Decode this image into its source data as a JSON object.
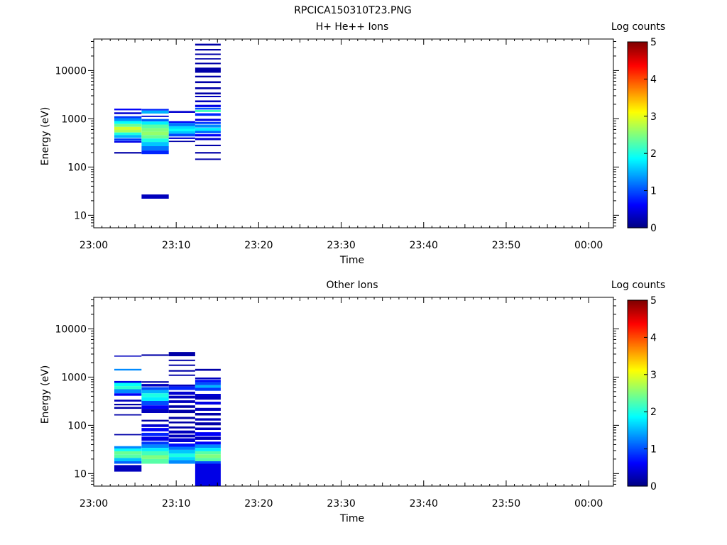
{
  "page_title": "RPCICA150310T23.PNG",
  "chart_data": [
    {
      "type": "heatmap",
      "title": "H+ He++ Ions",
      "xlabel": "Time",
      "ylabel": "Energy (eV)",
      "x_ticks": [
        "23:00",
        "23:10",
        "23:20",
        "23:30",
        "23:40",
        "23:50",
        "00:00"
      ],
      "xlim_minutes": [
        0,
        63
      ],
      "y_scale": "log",
      "ylim": [
        5.5,
        45000
      ],
      "y_ticks": [
        10,
        100,
        1000,
        10000
      ],
      "y_tick_labels": [
        "10",
        "100",
        "1000",
        "10000"
      ],
      "colorbar": {
        "label": "Log counts",
        "range": [
          0,
          5
        ],
        "ticks": [
          "0",
          "1",
          "2",
          "3",
          "4",
          "5"
        ]
      },
      "columns": [
        {
          "t0": 2.5,
          "t1": 5.8,
          "bands": [
            {
              "e0": 1500,
              "e1": 1620,
              "v": 0.6
            },
            {
              "e0": 1250,
              "e1": 1360,
              "v": 0.4
            },
            {
              "e0": 1030,
              "e1": 1130,
              "v": 0.9
            },
            {
              "e0": 900,
              "e1": 1030,
              "v": 1.3
            },
            {
              "e0": 780,
              "e1": 900,
              "v": 1.9
            },
            {
              "e0": 680,
              "e1": 780,
              "v": 2.4
            },
            {
              "e0": 590,
              "e1": 680,
              "v": 2.9
            },
            {
              "e0": 520,
              "e1": 590,
              "v": 2.7
            },
            {
              "e0": 460,
              "e1": 520,
              "v": 2.0
            },
            {
              "e0": 400,
              "e1": 460,
              "v": 1.5
            },
            {
              "e0": 350,
              "e1": 390,
              "v": 0.9
            },
            {
              "e0": 320,
              "e1": 345,
              "v": 0.5
            },
            {
              "e0": 190,
              "e1": 205,
              "v": 0.2
            }
          ]
        },
        {
          "t0": 5.8,
          "t1": 9.1,
          "bands": [
            {
              "e0": 1480,
              "e1": 1600,
              "v": 0.8
            },
            {
              "e0": 1280,
              "e1": 1480,
              "v": 1.5
            },
            {
              "e0": 1090,
              "e1": 1160,
              "v": 0.4
            },
            {
              "e0": 880,
              "e1": 990,
              "v": 1.1
            },
            {
              "e0": 760,
              "e1": 880,
              "v": 1.8
            },
            {
              "e0": 640,
              "e1": 760,
              "v": 2.3
            },
            {
              "e0": 540,
              "e1": 640,
              "v": 2.5
            },
            {
              "e0": 460,
              "e1": 540,
              "v": 2.6
            },
            {
              "e0": 390,
              "e1": 460,
              "v": 2.4
            },
            {
              "e0": 330,
              "e1": 390,
              "v": 2.0
            },
            {
              "e0": 270,
              "e1": 330,
              "v": 1.6
            },
            {
              "e0": 220,
              "e1": 270,
              "v": 1.2
            },
            {
              "e0": 185,
              "e1": 220,
              "v": 0.8
            },
            {
              "e0": 22,
              "e1": 27,
              "v": 0.3
            }
          ]
        },
        {
          "t0": 9.1,
          "t1": 12.3,
          "bands": [
            {
              "e0": 1330,
              "e1": 1450,
              "v": 0.4
            },
            {
              "e0": 820,
              "e1": 890,
              "v": 0.6
            },
            {
              "e0": 700,
              "e1": 820,
              "v": 1.2
            },
            {
              "e0": 620,
              "e1": 700,
              "v": 1.7
            },
            {
              "e0": 550,
              "e1": 620,
              "v": 1.9
            },
            {
              "e0": 490,
              "e1": 550,
              "v": 1.6
            },
            {
              "e0": 430,
              "e1": 490,
              "v": 1.0
            },
            {
              "e0": 380,
              "e1": 410,
              "v": 0.4
            },
            {
              "e0": 330,
              "e1": 350,
              "v": 0.2
            }
          ]
        },
        {
          "t0": 12.3,
          "t1": 15.4,
          "bands": [
            {
              "e0": 33000,
              "e1": 36000,
              "v": 0.2
            },
            {
              "e0": 26000,
              "e1": 28000,
              "v": 0.2
            },
            {
              "e0": 21000,
              "e1": 22500,
              "v": 0.2
            },
            {
              "e0": 17000,
              "e1": 18000,
              "v": 0.2
            },
            {
              "e0": 13500,
              "e1": 14500,
              "v": 0.2
            },
            {
              "e0": 9000,
              "e1": 11500,
              "v": 0.2
            },
            {
              "e0": 7200,
              "e1": 7800,
              "v": 0.2
            },
            {
              "e0": 5500,
              "e1": 6000,
              "v": 0.2
            },
            {
              "e0": 4100,
              "e1": 4500,
              "v": 0.2
            },
            {
              "e0": 3200,
              "e1": 3500,
              "v": 0.2
            },
            {
              "e0": 2800,
              "e1": 3000,
              "v": 0.3
            },
            {
              "e0": 2200,
              "e1": 2400,
              "v": 0.3
            },
            {
              "e0": 1750,
              "e1": 1950,
              "v": 0.5
            },
            {
              "e0": 1550,
              "e1": 1700,
              "v": 1.0
            },
            {
              "e0": 1380,
              "e1": 1520,
              "v": 2.2
            },
            {
              "e0": 1150,
              "e1": 1300,
              "v": 0.8
            },
            {
              "e0": 900,
              "e1": 1000,
              "v": 0.5
            },
            {
              "e0": 780,
              "e1": 860,
              "v": 0.9
            },
            {
              "e0": 660,
              "e1": 760,
              "v": 1.3
            },
            {
              "e0": 560,
              "e1": 650,
              "v": 1.8
            },
            {
              "e0": 500,
              "e1": 560,
              "v": 1.1
            },
            {
              "e0": 430,
              "e1": 480,
              "v": 0.6
            },
            {
              "e0": 360,
              "e1": 400,
              "v": 0.4
            },
            {
              "e0": 270,
              "e1": 290,
              "v": 0.2
            },
            {
              "e0": 190,
              "e1": 205,
              "v": 0.2
            },
            {
              "e0": 140,
              "e1": 150,
              "v": 0.2
            }
          ]
        }
      ]
    },
    {
      "type": "heatmap",
      "title": "Other Ions",
      "xlabel": "Time",
      "ylabel": "Energy (eV)",
      "x_ticks": [
        "23:00",
        "23:10",
        "23:20",
        "23:30",
        "23:40",
        "23:50",
        "00:00"
      ],
      "xlim_minutes": [
        0,
        63
      ],
      "y_scale": "log",
      "ylim": [
        5.5,
        45000
      ],
      "y_ticks": [
        10,
        100,
        1000,
        10000
      ],
      "y_tick_labels": [
        "10",
        "100",
        "1000",
        "10000"
      ],
      "colorbar": {
        "label": "Log counts",
        "range": [
          0,
          5
        ],
        "ticks": [
          "0",
          "1",
          "2",
          "3",
          "4",
          "5"
        ]
      },
      "columns": [
        {
          "t0": 2.5,
          "t1": 5.8,
          "bands": [
            {
              "e0": 2650,
              "e1": 2800,
              "v": 0.3
            },
            {
              "e0": 1370,
              "e1": 1480,
              "v": 1.3
            },
            {
              "e0": 760,
              "e1": 830,
              "v": 0.5
            },
            {
              "e0": 650,
              "e1": 760,
              "v": 1.9
            },
            {
              "e0": 560,
              "e1": 650,
              "v": 2.1
            },
            {
              "e0": 460,
              "e1": 560,
              "v": 1.3
            },
            {
              "e0": 410,
              "e1": 460,
              "v": 0.6
            },
            {
              "e0": 310,
              "e1": 340,
              "v": 0.3
            },
            {
              "e0": 260,
              "e1": 280,
              "v": 0.2
            },
            {
              "e0": 220,
              "e1": 240,
              "v": 0.2
            },
            {
              "e0": 160,
              "e1": 170,
              "v": 0.2
            },
            {
              "e0": 62,
              "e1": 66,
              "v": 0.2
            },
            {
              "e0": 33,
              "e1": 37,
              "v": 1.3
            },
            {
              "e0": 29,
              "e1": 33,
              "v": 1.9
            },
            {
              "e0": 25,
              "e1": 29,
              "v": 2.4
            },
            {
              "e0": 21,
              "e1": 25,
              "v": 2.3
            },
            {
              "e0": 18,
              "e1": 21,
              "v": 1.6
            },
            {
              "e0": 16,
              "e1": 18,
              "v": 1.1
            },
            {
              "e0": 11,
              "e1": 15,
              "v": 0.3
            }
          ]
        },
        {
          "t0": 5.8,
          "t1": 9.1,
          "bands": [
            {
              "e0": 2750,
              "e1": 2950,
              "v": 0.2
            },
            {
              "e0": 760,
              "e1": 820,
              "v": 0.2
            },
            {
              "e0": 640,
              "e1": 720,
              "v": 0.3
            },
            {
              "e0": 540,
              "e1": 620,
              "v": 1.0
            },
            {
              "e0": 460,
              "e1": 540,
              "v": 1.5
            },
            {
              "e0": 380,
              "e1": 460,
              "v": 2.0
            },
            {
              "e0": 320,
              "e1": 380,
              "v": 1.8
            },
            {
              "e0": 260,
              "e1": 320,
              "v": 1.0
            },
            {
              "e0": 220,
              "e1": 260,
              "v": 0.6
            },
            {
              "e0": 180,
              "e1": 220,
              "v": 0.3
            },
            {
              "e0": 120,
              "e1": 130,
              "v": 0.2
            },
            {
              "e0": 92,
              "e1": 105,
              "v": 0.4
            },
            {
              "e0": 75,
              "e1": 88,
              "v": 0.6
            },
            {
              "e0": 60,
              "e1": 70,
              "v": 0.8
            },
            {
              "e0": 48,
              "e1": 58,
              "v": 0.5
            },
            {
              "e0": 40,
              "e1": 46,
              "v": 0.9
            },
            {
              "e0": 34,
              "e1": 40,
              "v": 1.3
            },
            {
              "e0": 29,
              "e1": 34,
              "v": 1.8
            },
            {
              "e0": 24,
              "e1": 29,
              "v": 2.2
            },
            {
              "e0": 20,
              "e1": 24,
              "v": 2.5
            },
            {
              "e0": 16,
              "e1": 20,
              "v": 2.3
            }
          ]
        },
        {
          "t0": 9.1,
          "t1": 12.3,
          "bands": [
            {
              "e0": 2700,
              "e1": 3300,
              "v": 0.2
            },
            {
              "e0": 2150,
              "e1": 2300,
              "v": 0.2
            },
            {
              "e0": 1700,
              "e1": 1820,
              "v": 0.2
            },
            {
              "e0": 1300,
              "e1": 1400,
              "v": 0.2
            },
            {
              "e0": 1060,
              "e1": 1130,
              "v": 0.2
            },
            {
              "e0": 640,
              "e1": 700,
              "v": 0.3
            },
            {
              "e0": 540,
              "e1": 640,
              "v": 0.8
            },
            {
              "e0": 430,
              "e1": 500,
              "v": 0.4
            },
            {
              "e0": 360,
              "e1": 410,
              "v": 0.3
            },
            {
              "e0": 290,
              "e1": 330,
              "v": 0.3
            },
            {
              "e0": 230,
              "e1": 260,
              "v": 0.2
            },
            {
              "e0": 180,
              "e1": 210,
              "v": 0.2
            },
            {
              "e0": 135,
              "e1": 150,
              "v": 0.2
            },
            {
              "e0": 110,
              "e1": 120,
              "v": 0.2
            },
            {
              "e0": 86,
              "e1": 95,
              "v": 0.2
            },
            {
              "e0": 68,
              "e1": 78,
              "v": 0.3
            },
            {
              "e0": 56,
              "e1": 64,
              "v": 0.3
            },
            {
              "e0": 45,
              "e1": 54,
              "v": 0.4
            },
            {
              "e0": 36,
              "e1": 42,
              "v": 0.7
            },
            {
              "e0": 31,
              "e1": 36,
              "v": 1.2
            },
            {
              "e0": 26,
              "e1": 31,
              "v": 1.6
            },
            {
              "e0": 22,
              "e1": 26,
              "v": 2.0
            },
            {
              "e0": 19,
              "e1": 22,
              "v": 1.7
            },
            {
              "e0": 16,
              "e1": 19,
              "v": 1.3
            }
          ]
        },
        {
          "t0": 12.3,
          "t1": 15.4,
          "bands": [
            {
              "e0": 1350,
              "e1": 1480,
              "v": 0.2
            },
            {
              "e0": 900,
              "e1": 980,
              "v": 0.3
            },
            {
              "e0": 780,
              "e1": 880,
              "v": 0.7
            },
            {
              "e0": 680,
              "e1": 780,
              "v": 1.0
            },
            {
              "e0": 600,
              "e1": 680,
              "v": 1.5
            },
            {
              "e0": 520,
              "e1": 600,
              "v": 0.9
            },
            {
              "e0": 400,
              "e1": 450,
              "v": 0.4
            },
            {
              "e0": 340,
              "e1": 400,
              "v": 0.3
            },
            {
              "e0": 270,
              "e1": 310,
              "v": 0.5
            },
            {
              "e0": 200,
              "e1": 230,
              "v": 0.3
            },
            {
              "e0": 160,
              "e1": 180,
              "v": 0.2
            },
            {
              "e0": 125,
              "e1": 140,
              "v": 0.3
            },
            {
              "e0": 100,
              "e1": 115,
              "v": 0.2
            },
            {
              "e0": 80,
              "e1": 90,
              "v": 0.3
            },
            {
              "e0": 60,
              "e1": 72,
              "v": 0.6
            },
            {
              "e0": 50,
              "e1": 58,
              "v": 0.3
            },
            {
              "e0": 40,
              "e1": 46,
              "v": 0.6
            },
            {
              "e0": 34,
              "e1": 40,
              "v": 1.3
            },
            {
              "e0": 29,
              "e1": 34,
              "v": 1.8
            },
            {
              "e0": 25,
              "e1": 29,
              "v": 2.3
            },
            {
              "e0": 21,
              "e1": 25,
              "v": 2.5
            },
            {
              "e0": 18,
              "e1": 21,
              "v": 2.3
            },
            {
              "e0": 16,
              "e1": 18,
              "v": 1.0
            },
            {
              "e0": 5.5,
              "e1": 16,
              "v": 0.5
            }
          ]
        }
      ]
    }
  ]
}
